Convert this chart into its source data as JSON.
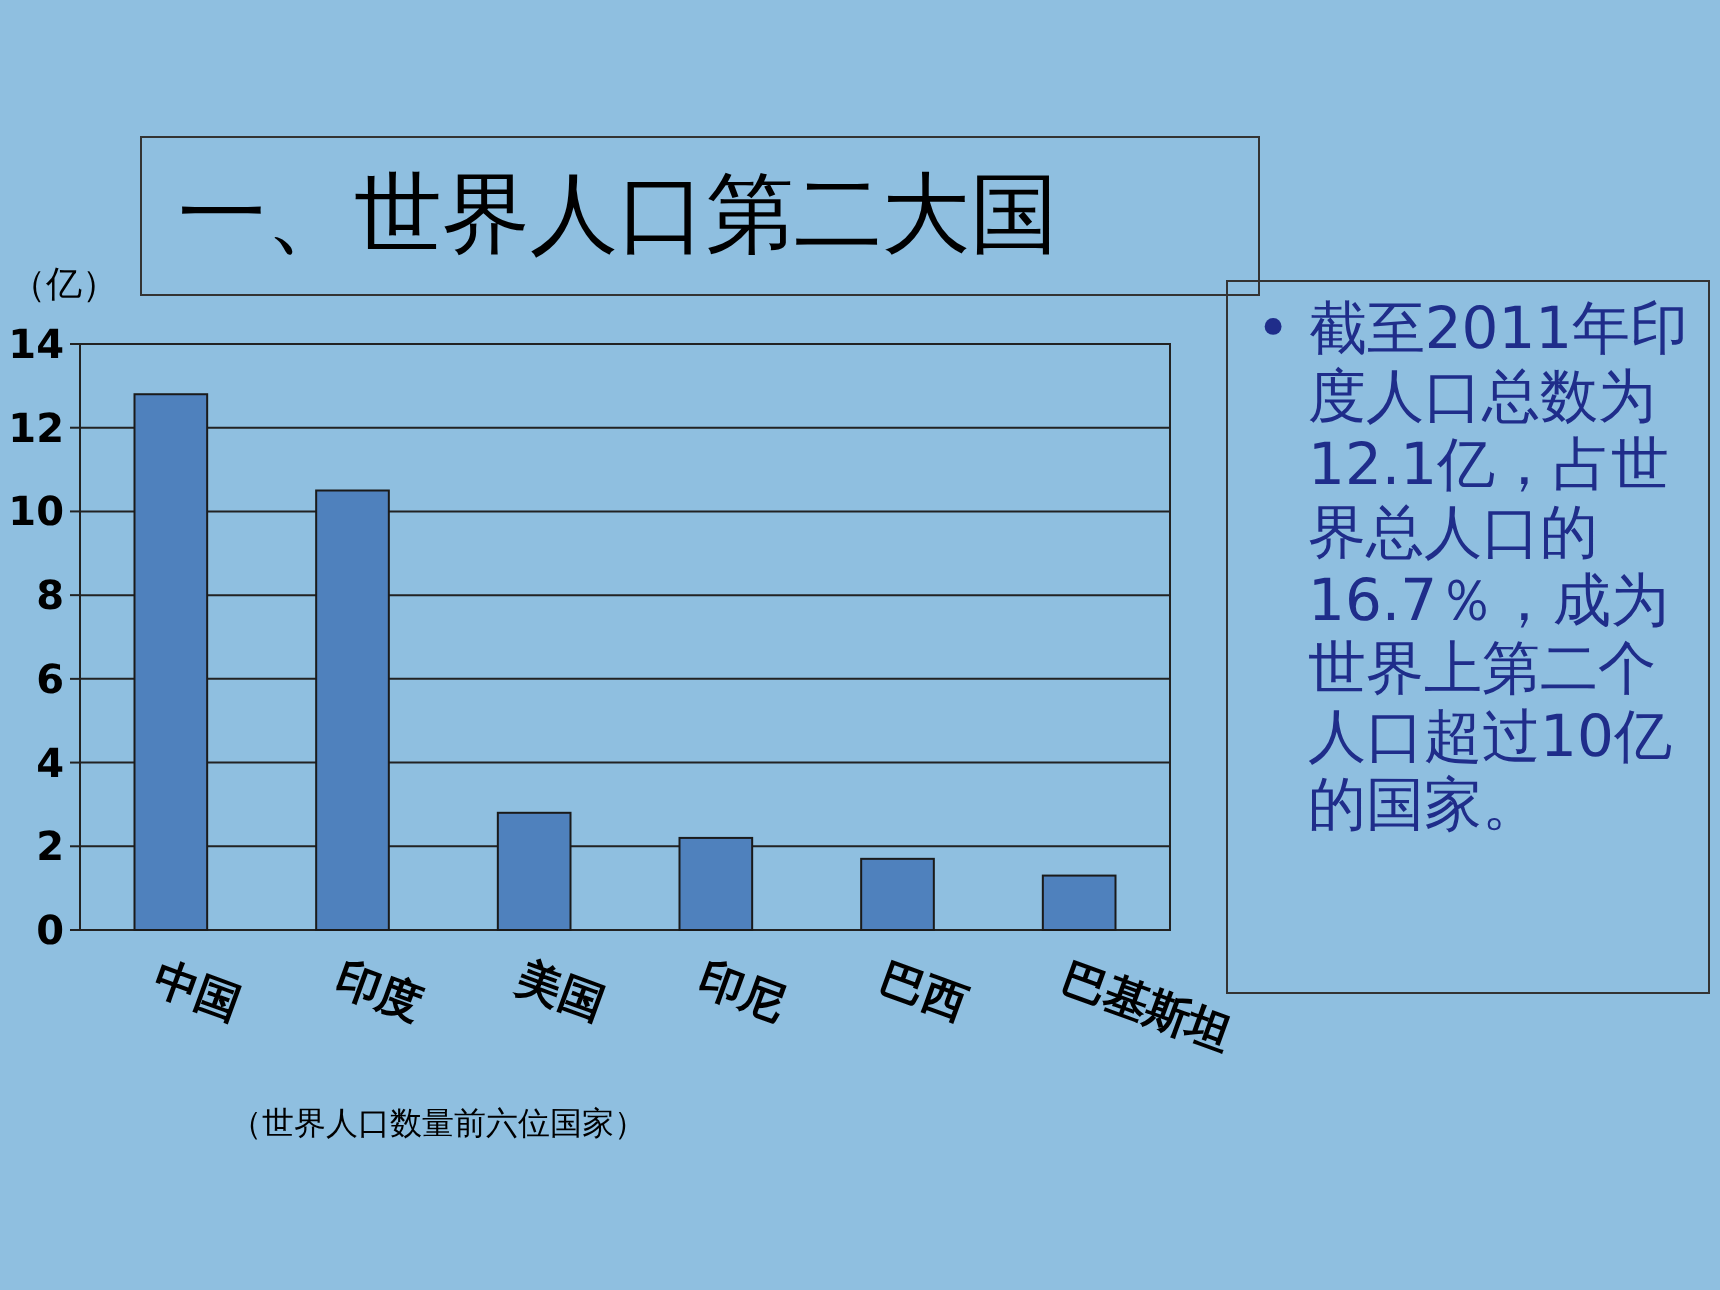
{
  "chart_data": {
    "type": "bar",
    "title": "一、世界人口第二大国",
    "ylabel": "（亿）",
    "categories": [
      "中国",
      "印度",
      "美国",
      "印尼",
      "巴西",
      "巴基斯坦"
    ],
    "values": [
      12.8,
      10.5,
      2.8,
      2.2,
      1.7,
      1.3
    ],
    "color": "#4f81bd",
    "ylim": [
      0,
      14
    ],
    "yticks": [
      0,
      2,
      4,
      6,
      8,
      10,
      12,
      14
    ],
    "grid": "y",
    "annotations": [
      "• 截至2011年印度人口总数为12.1亿，占世界总人口的16.7％，成为世界上第二个人口超过10亿的国家。",
      "（世界人口数量前六位国家）"
    ]
  }
}
